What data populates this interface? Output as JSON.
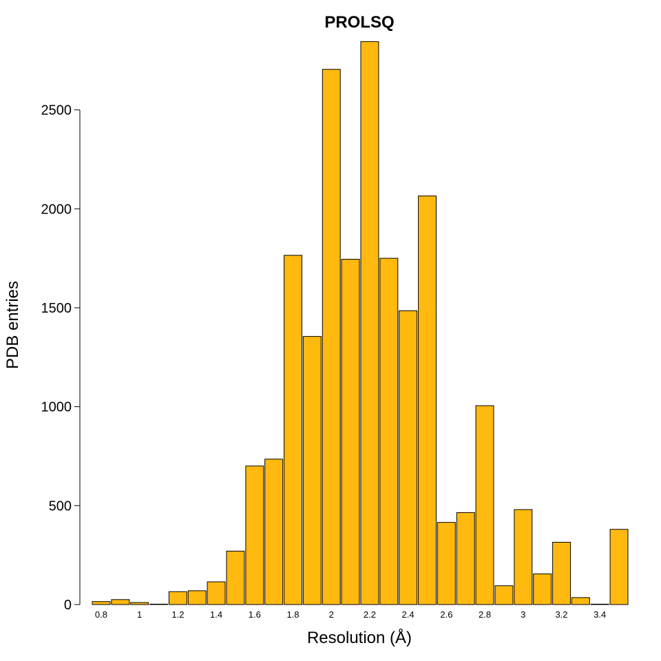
{
  "chart_data": {
    "type": "bar",
    "title": "PROLSQ",
    "xlabel": "Resolution (Å)",
    "ylabel": "PDB entries",
    "bar_color": "#FFB90F",
    "ylim": [
      0,
      2850
    ],
    "yticks": [
      0,
      500,
      1000,
      1500,
      2000,
      2500
    ],
    "xlim": [
      0.75,
      3.55
    ],
    "xticks": [
      0.8,
      1,
      1.2,
      1.4,
      1.6,
      1.8,
      2,
      2.2,
      2.4,
      2.6,
      2.8,
      3,
      3.2,
      3.4
    ],
    "xtick_labels": [
      "0.8",
      "1",
      "1.2",
      "1.4",
      "1.6",
      "1.8",
      "2",
      "2.2",
      "2.4",
      "2.6",
      "2.8",
      "3",
      "3.2",
      "3.4"
    ],
    "bin_width": 0.1,
    "bins": [
      0.75,
      0.85,
      0.95,
      1.05,
      1.15,
      1.25,
      1.35,
      1.45,
      1.55,
      1.65,
      1.75,
      1.85,
      1.95,
      2.05,
      2.15,
      2.25,
      2.35,
      2.45,
      2.55,
      2.65,
      2.75,
      2.85,
      2.95,
      3.05,
      3.15,
      3.25,
      3.35,
      3.45
    ],
    "values": [
      15,
      25,
      10,
      2,
      65,
      70,
      115,
      270,
      700,
      735,
      1765,
      1355,
      2705,
      1745,
      2845,
      1750,
      1485,
      2065,
      415,
      465,
      1005,
      95,
      480,
      155,
      315,
      35,
      2,
      380
    ],
    "grid": false,
    "legend": "none"
  }
}
